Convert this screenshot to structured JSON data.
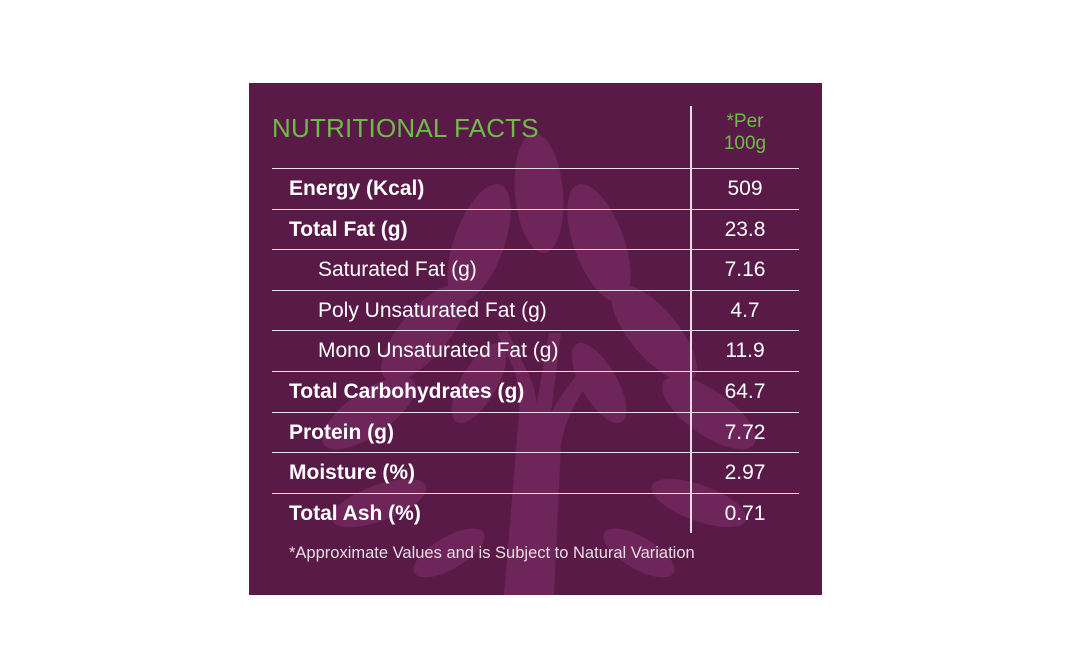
{
  "header": {
    "title": "NUTRITIONAL FACTS",
    "per_line1": "*Per",
    "per_line2": "100g"
  },
  "rows": [
    {
      "label": "Energy (Kcal)",
      "value": "509"
    },
    {
      "label": "Total Fat (g)",
      "value": "23.8"
    },
    {
      "label": "Saturated Fat (g)",
      "value": "7.16"
    },
    {
      "label": "Poly Unsaturated Fat (g)",
      "value": "4.7"
    },
    {
      "label": "Mono Unsaturated Fat (g)",
      "value": "11.9"
    },
    {
      "label": "Total Carbohydrates (g)",
      "value": "64.7"
    },
    {
      "label": "Protein (g)",
      "value": "7.72"
    },
    {
      "label": "Moisture (%)",
      "value": "2.97"
    },
    {
      "label": "Total Ash (%)",
      "value": "0.71"
    }
  ],
  "footnote": "*Approximate Values and is Subject to Natural Variation",
  "colors": {
    "background": "#5a1a47",
    "tree_art": "#6e2559",
    "title": "#6abd45",
    "text": "#ffffff",
    "rule": "#e9dde4"
  }
}
